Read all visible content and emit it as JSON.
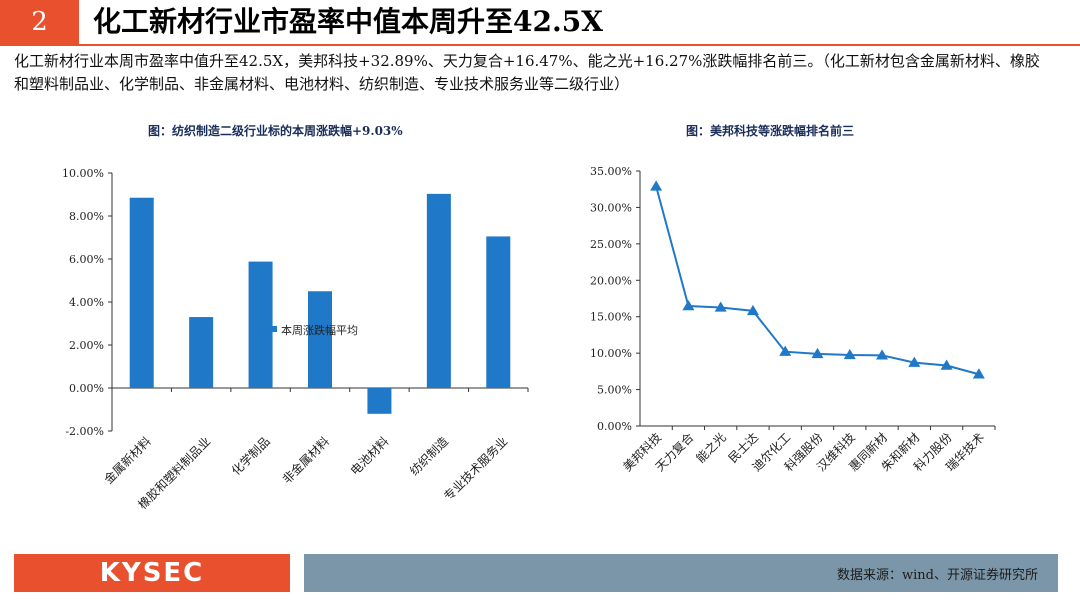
{
  "header": {
    "number": "2",
    "title": "化工新材行业市盈率中值本周升至42.5X"
  },
  "description": "化工新材行业本周市盈率中值升至42.5X，美邦科技+32.89%、天力复合+16.47%、能之光+16.27%涨跌幅排名前三。（化工新材包含金属新材料、橡胶和塑料制品业、化学制品、非金属材料、电池材料、纺织制造、专业技术服务业等二级行业）",
  "chart_data": [
    {
      "type": "bar",
      "title": "图：纺织制造二级行业标的本周涨跌幅+9.03%",
      "categories": [
        "金属新材料",
        "橡胶和塑料制品业",
        "化学制品",
        "非金属材料",
        "电池材料",
        "纺织制造",
        "专业技术服务业"
      ],
      "series": [
        {
          "name": "本周涨跌幅平均",
          "values": [
            8.85,
            3.3,
            5.88,
            4.5,
            -1.2,
            9.03,
            7.05
          ],
          "color": "#1f78c8"
        }
      ],
      "ylim": [
        -2,
        10
      ],
      "yticks": [
        "-2.00%",
        "0.00%",
        "2.00%",
        "4.00%",
        "6.00%",
        "8.00%",
        "10.00%"
      ],
      "legend_position": "center",
      "grid": false
    },
    {
      "type": "line",
      "title": "图：美邦科技等涨跌幅排名前三",
      "categories": [
        "美邦科技",
        "天力复合",
        "能之光",
        "民士达",
        "迪尔化工",
        "科强股份",
        "汉维科技",
        "惠同新材",
        "朱和新材",
        "科力股份",
        "瑞华技术"
      ],
      "series": [
        {
          "values": [
            32.89,
            16.47,
            16.27,
            15.8,
            10.2,
            9.9,
            9.75,
            9.7,
            8.7,
            8.3,
            7.1
          ],
          "color": "#1f78c8",
          "marker": "triangle"
        }
      ],
      "ylim": [
        0,
        35
      ],
      "yticks": [
        "0.00%",
        "5.00%",
        "10.00%",
        "15.00%",
        "20.00%",
        "25.00%",
        "30.00%",
        "35.00%"
      ],
      "grid": false
    }
  ],
  "footer": {
    "logo": "KYSEC",
    "source": "数据来源：wind、开源证券研究所",
    "colors": {
      "accent": "#e8502e",
      "bar": "#7a96a8"
    }
  }
}
